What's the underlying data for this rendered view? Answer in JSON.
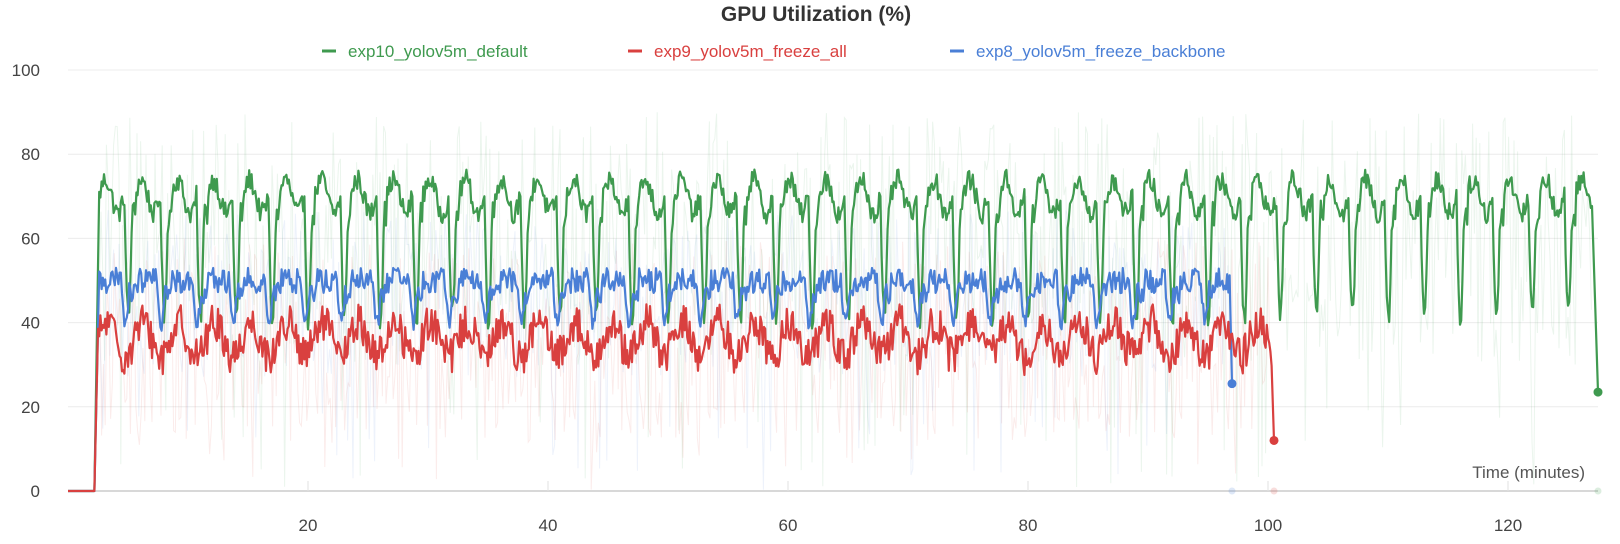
{
  "chart_data": {
    "type": "line",
    "title": "GPU Utilization (%)",
    "xlabel": "Time (minutes)",
    "ylabel": "",
    "xlim": [
      0,
      127.5
    ],
    "ylim": [
      0,
      100
    ],
    "x_ticks": [
      20,
      40,
      60,
      80,
      100,
      120
    ],
    "x_tick_labels": [
      "20",
      "40",
      "60",
      "80",
      "100",
      "120"
    ],
    "y_ticks": [
      0,
      20,
      40,
      60,
      80,
      100
    ],
    "y_tick_labels": [
      "0",
      "20",
      "40",
      "60",
      "80",
      "100"
    ],
    "grid": true,
    "legend_position": "top",
    "series": [
      {
        "name": "exp10_yolov5m_default",
        "color": "#3f9a4f",
        "x_start": 2.2,
        "x_end": 127.0,
        "ramp_end_x": 2.6,
        "high": 74,
        "low": 41,
        "cycle_minutes": 3.0,
        "final_point": {
          "x": 127.5,
          "y": 23.5
        }
      },
      {
        "name": "exp9_yolov5m_freeze_all",
        "color": "#d9403f",
        "x_start": 2.2,
        "x_end": 100.3,
        "ramp_end_x": 2.5,
        "mean": 36,
        "amplitude": 4,
        "cycle_minutes": 3.0,
        "final_point": {
          "x": 100.5,
          "y": 12
        }
      },
      {
        "name": "exp8_yolov5m_freeze_backbone",
        "color": "#4a7fd6",
        "x_start": 2.2,
        "x_end": 96.8,
        "ramp_end_x": 2.6,
        "high": 53,
        "low": 40,
        "cycle_minutes": 3.0,
        "final_point": {
          "x": 97.0,
          "y": 25.5
        }
      }
    ]
  }
}
